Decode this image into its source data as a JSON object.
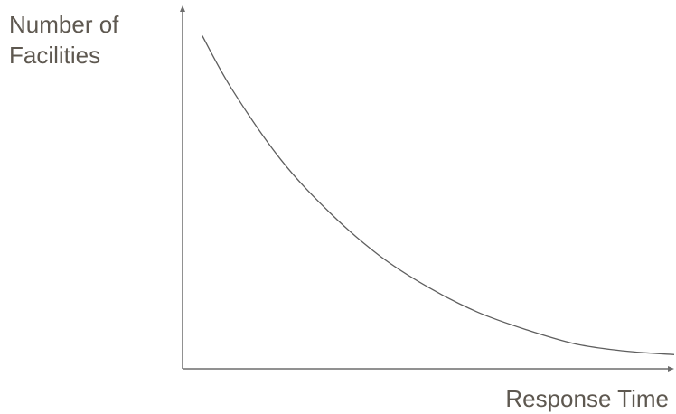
{
  "chart_data": {
    "type": "line",
    "ylabel_lines": [
      "Number of",
      "Facilities"
    ],
    "xlabel": "Response Time",
    "axis_ticks": false,
    "grid": false,
    "legend": "none",
    "axis_color": "#6d6d6d",
    "curve_color": "#5e5e5e",
    "label_color": "#5e5850",
    "series": [
      {
        "x": [
          0.04,
          0.1,
          0.2,
          0.3,
          0.4,
          0.5,
          0.6,
          0.7,
          0.8,
          0.9,
          1.0
        ],
        "values": [
          0.94,
          0.79,
          0.59,
          0.44,
          0.32,
          0.23,
          0.16,
          0.11,
          0.07,
          0.05,
          0.04
        ]
      }
    ]
  }
}
